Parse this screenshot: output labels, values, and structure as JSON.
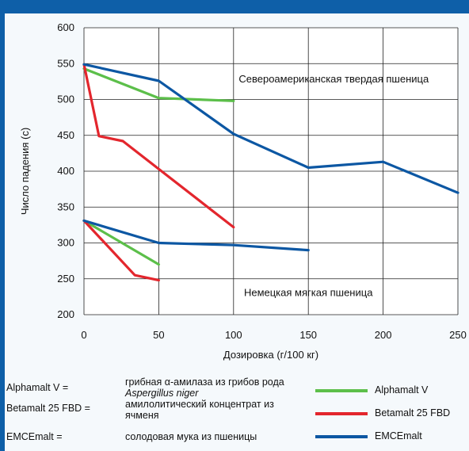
{
  "chart_data": {
    "type": "line",
    "xlabel": "Дозировка (г/100 кг)",
    "ylabel": "Число падения (с)",
    "xlim": [
      0,
      250
    ],
    "ylim": [
      200,
      600
    ],
    "xticks": [
      0,
      50,
      100,
      150,
      200,
      250
    ],
    "yticks": [
      200,
      250,
      300,
      350,
      400,
      450,
      500,
      550,
      600
    ],
    "grid": true,
    "annotations": {
      "upper": "Североамериканская твердая пшеница",
      "lower": "Немецкая мягкая пшеница"
    },
    "series": [
      {
        "name": "Alphamalt V",
        "group": "upper",
        "color": "#5cbf4a",
        "x": [
          0,
          50,
          100
        ],
        "y": [
          543,
          502,
          498
        ]
      },
      {
        "name": "Betamalt 25 FBD",
        "group": "upper",
        "color": "#e3262d",
        "x": [
          0,
          10,
          26,
          50,
          100
        ],
        "y": [
          549,
          449,
          442,
          403,
          322
        ]
      },
      {
        "name": "EMCEmalt",
        "group": "upper",
        "color": "#0c57a3",
        "x": [
          0,
          50,
          100,
          150,
          200,
          250
        ],
        "y": [
          549,
          526,
          452,
          405,
          413,
          370
        ]
      },
      {
        "name": "Alphamalt V",
        "group": "lower",
        "color": "#5cbf4a",
        "x": [
          0,
          50
        ],
        "y": [
          331,
          270
        ]
      },
      {
        "name": "Betamalt 25 FBD",
        "group": "lower",
        "color": "#e3262d",
        "x": [
          0,
          34,
          50
        ],
        "y": [
          331,
          255,
          248
        ]
      },
      {
        "name": "EMCEmalt",
        "group": "lower",
        "color": "#0c57a3",
        "x": [
          0,
          50,
          100,
          150
        ],
        "y": [
          331,
          300,
          297,
          290
        ]
      }
    ]
  },
  "legend": {
    "definitions": [
      {
        "term": "Alphamalt V =",
        "desc_before": "грибная ",
        "desc_symbol": "α",
        "desc_after": "-амилаза из грибов рода ",
        "desc_italic": "Aspergillus niger"
      },
      {
        "term": "Betamalt 25 FBD =",
        "desc": "амилолитический концентрат из ячменя"
      },
      {
        "term": "EMCEmalt =",
        "desc": "солодовая мука из пшеницы"
      }
    ],
    "items": [
      {
        "label": "Alphamalt V",
        "color": "#5cbf4a"
      },
      {
        "label": "Betamalt 25 FBD",
        "color": "#e3262d"
      },
      {
        "label": "EMCEmalt",
        "color": "#0c57a3"
      }
    ]
  }
}
